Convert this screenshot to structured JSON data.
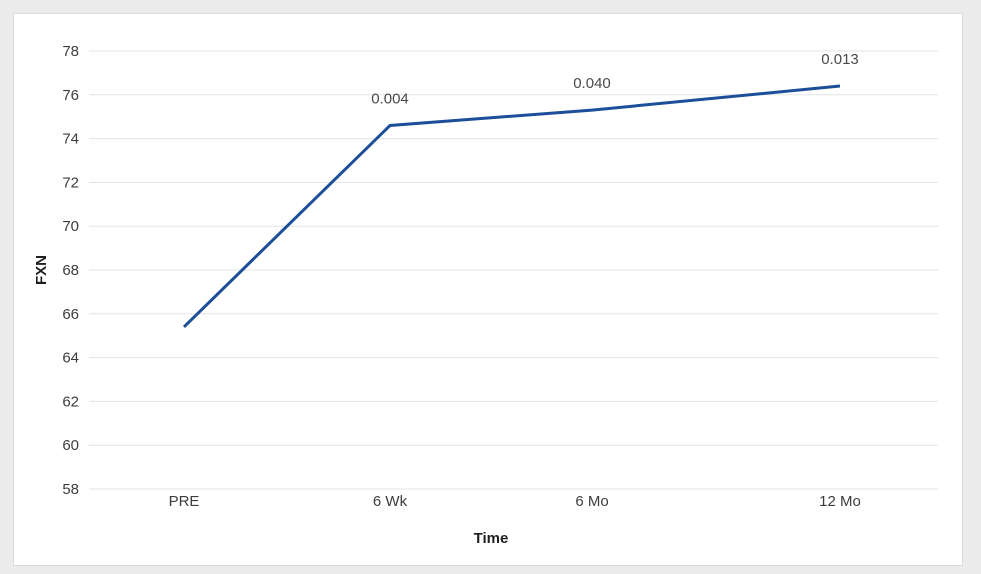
{
  "chart_data": {
    "type": "line",
    "title": "",
    "xlabel": "Time",
    "ylabel": "FXN",
    "categories": [
      "PRE",
      "6 Wk",
      "6 Mo",
      "12 Mo"
    ],
    "values": [
      65.4,
      74.6,
      75.3,
      76.4
    ],
    "point_labels": [
      "",
      "0.004",
      "0.040",
      "0.013"
    ],
    "ylim": [
      58,
      78
    ],
    "ytick_step": 2,
    "grid": true,
    "legend": "none",
    "colors": {
      "line": "#1c4e9a",
      "page_background": "#ebebeb",
      "card_background": "#ffffff",
      "card_border": "#dcdcdc",
      "gridline": "#e3e3e3",
      "tick_text": "#3d3d3d",
      "axis_label_text": "#1f1f1f",
      "annotation_text": "#4a4a4a"
    }
  }
}
